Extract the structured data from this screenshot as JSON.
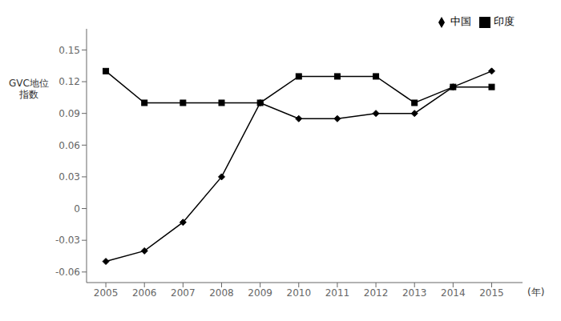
{
  "chart_data": {
    "type": "line",
    "xlabel": "(年)",
    "ylabel": "GVC地位\n指数",
    "x": [
      2005,
      2006,
      2007,
      2008,
      2009,
      2010,
      2011,
      2012,
      2013,
      2014,
      2015
    ],
    "xlim": [
      2004.5,
      2015.8
    ],
    "xticks": [
      2005,
      2006,
      2007,
      2008,
      2009,
      2010,
      2011,
      2012,
      2013,
      2014,
      2015
    ],
    "ylim": [
      -0.07,
      0.17
    ],
    "yticks": [
      -0.06,
      -0.03,
      0,
      0.03,
      0.06,
      0.09,
      0.12,
      0.15
    ],
    "series": [
      {
        "name": "中国",
        "color": "#000000",
        "marker": "diamond",
        "values": [
          -0.05,
          -0.04,
          -0.013,
          0.03,
          0.1,
          0.085,
          0.085,
          0.09,
          0.09,
          0.115,
          0.13
        ]
      },
      {
        "name": "印度",
        "color": "#000000",
        "marker": "square",
        "values": [
          0.13,
          0.1,
          0.1,
          0.1,
          0.1,
          0.125,
          0.125,
          0.125,
          0.1,
          0.115,
          0.115
        ]
      }
    ],
    "grid": false,
    "legend": "upper right"
  }
}
